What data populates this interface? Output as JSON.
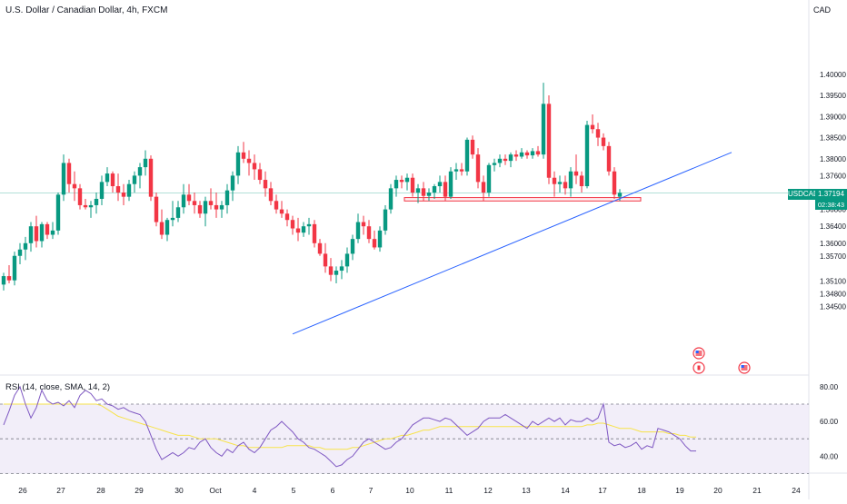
{
  "header": {
    "title": "U.S. Dollar / Canadian Dollar, 4h, FXCM",
    "currency": "CAD"
  },
  "price_badge": {
    "symbol": "USDCAD",
    "price": "1.37194",
    "countdown": "02:38:43"
  },
  "rsi_panel": {
    "title": "RSI (14, close, SMA, 14, 2)"
  },
  "colors": {
    "up": "#089981",
    "down": "#f23645",
    "trendline": "#2962ff",
    "rsi_line": "#7e57c2",
    "rsi_ma": "#f7e34a",
    "rsi_band": "#ede7f6"
  },
  "chart_data": [
    {
      "type": "candlestick",
      "timeframe": "4h",
      "y_axis_ticks": [
        "1.40000",
        "1.39500",
        "1.39000",
        "1.38500",
        "1.38000",
        "1.37600",
        "1.36800",
        "1.36400",
        "1.36000",
        "1.35700",
        "1.35100",
        "1.34800",
        "1.34500"
      ],
      "x_axis_ticks": [
        "26",
        "27",
        "28",
        "29",
        "30",
        "Oct",
        "4",
        "5",
        "6",
        "7",
        "10",
        "11",
        "12",
        "13",
        "14",
        "17",
        "18",
        "19",
        "20",
        "21",
        "24"
      ],
      "current_price": 1.37194,
      "trendline": {
        "from": [
          "Oct 4",
          1.3385
        ],
        "to": [
          "Oct 21",
          1.3815
        ]
      },
      "support_zone": [
        1.37,
        1.3708
      ],
      "event_markers": [
        "US",
        "CA",
        "US"
      ],
      "candles": [
        [
          1.3502,
          1.353,
          1.3488,
          1.3522
        ],
        [
          1.3522,
          1.3548,
          1.3505,
          1.3512
        ],
        [
          1.3512,
          1.358,
          1.35,
          1.357
        ],
        [
          1.357,
          1.36,
          1.355,
          1.3585
        ],
        [
          1.3585,
          1.3615,
          1.356,
          1.36
        ],
        [
          1.36,
          1.365,
          1.358,
          1.364
        ],
        [
          1.364,
          1.3665,
          1.359,
          1.3605
        ],
        [
          1.3605,
          1.365,
          1.359,
          1.3645
        ],
        [
          1.3645,
          1.365,
          1.361,
          1.362
        ],
        [
          1.362,
          1.365,
          1.361,
          1.363
        ],
        [
          1.363,
          1.372,
          1.362,
          1.3715
        ],
        [
          1.3715,
          1.381,
          1.37,
          1.379
        ],
        [
          1.379,
          1.38,
          1.372,
          1.374
        ],
        [
          1.374,
          1.377,
          1.37,
          1.373
        ],
        [
          1.373,
          1.374,
          1.368,
          1.369
        ],
        [
          1.369,
          1.3705,
          1.368,
          1.3685
        ],
        [
          1.3685,
          1.37,
          1.366,
          1.369
        ],
        [
          1.369,
          1.372,
          1.367,
          1.3705
        ],
        [
          1.3705,
          1.376,
          1.369,
          1.3745
        ],
        [
          1.3745,
          1.378,
          1.3735,
          1.3765
        ],
        [
          1.3765,
          1.377,
          1.372,
          1.3735
        ],
        [
          1.3735,
          1.3765,
          1.37,
          1.372
        ],
        [
          1.372,
          1.374,
          1.369,
          1.371
        ],
        [
          1.371,
          1.375,
          1.37,
          1.374
        ],
        [
          1.374,
          1.377,
          1.372,
          1.376
        ],
        [
          1.376,
          1.379,
          1.373,
          1.378
        ],
        [
          1.378,
          1.382,
          1.376,
          1.38
        ],
        [
          1.38,
          1.3808,
          1.37,
          1.371
        ],
        [
          1.371,
          1.372,
          1.364,
          1.365
        ],
        [
          1.365,
          1.368,
          1.361,
          1.362
        ],
        [
          1.362,
          1.366,
          1.3605,
          1.3655
        ],
        [
          1.3655,
          1.37,
          1.364,
          1.366
        ],
        [
          1.366,
          1.37,
          1.365,
          1.3685
        ],
        [
          1.3685,
          1.374,
          1.367,
          1.3715
        ],
        [
          1.3715,
          1.374,
          1.369,
          1.37
        ],
        [
          1.37,
          1.372,
          1.367,
          1.369
        ],
        [
          1.369,
          1.37,
          1.366,
          1.367
        ],
        [
          1.367,
          1.371,
          1.364,
          1.37
        ],
        [
          1.37,
          1.373,
          1.368,
          1.369
        ],
        [
          1.369,
          1.372,
          1.366,
          1.368
        ],
        [
          1.368,
          1.37,
          1.366,
          1.369
        ],
        [
          1.369,
          1.374,
          1.367,
          1.3725
        ],
        [
          1.3725,
          1.377,
          1.37,
          1.376
        ],
        [
          1.376,
          1.383,
          1.374,
          1.3815
        ],
        [
          1.3815,
          1.384,
          1.379,
          1.38
        ],
        [
          1.38,
          1.382,
          1.376,
          1.379
        ],
        [
          1.379,
          1.381,
          1.375,
          1.3775
        ],
        [
          1.3775,
          1.379,
          1.374,
          1.375
        ],
        [
          1.375,
          1.377,
          1.371,
          1.373
        ],
        [
          1.373,
          1.3745,
          1.369,
          1.37
        ],
        [
          1.37,
          1.3715,
          1.367,
          1.368
        ],
        [
          1.368,
          1.37,
          1.366,
          1.367
        ],
        [
          1.367,
          1.368,
          1.364,
          1.3655
        ],
        [
          1.3655,
          1.3665,
          1.362,
          1.3635
        ],
        [
          1.3635,
          1.366,
          1.3605,
          1.3625
        ],
        [
          1.3625,
          1.365,
          1.3615,
          1.364
        ],
        [
          1.364,
          1.366,
          1.362,
          1.3645
        ],
        [
          1.3645,
          1.3655,
          1.359,
          1.36
        ],
        [
          1.36,
          1.361,
          1.357,
          1.3575
        ],
        [
          1.3575,
          1.36,
          1.353,
          1.3545
        ],
        [
          1.3545,
          1.3565,
          1.351,
          1.3525
        ],
        [
          1.3525,
          1.3545,
          1.3505,
          1.3535
        ],
        [
          1.3535,
          1.356,
          1.3515,
          1.3545
        ],
        [
          1.3545,
          1.359,
          1.353,
          1.3575
        ],
        [
          1.3575,
          1.362,
          1.356,
          1.361
        ],
        [
          1.361,
          1.367,
          1.36,
          1.365
        ],
        [
          1.365,
          1.3665,
          1.362,
          1.364
        ],
        [
          1.364,
          1.3655,
          1.36,
          1.361
        ],
        [
          1.361,
          1.363,
          1.3585,
          1.359
        ],
        [
          1.359,
          1.364,
          1.358,
          1.363
        ],
        [
          1.363,
          1.369,
          1.362,
          1.368
        ],
        [
          1.368,
          1.374,
          1.367,
          1.373
        ],
        [
          1.373,
          1.376,
          1.371,
          1.375
        ],
        [
          1.375,
          1.376,
          1.373,
          1.3745
        ],
        [
          1.3745,
          1.3765,
          1.3725,
          1.3755
        ],
        [
          1.3755,
          1.3765,
          1.371,
          1.372
        ],
        [
          1.372,
          1.374,
          1.3695,
          1.373
        ],
        [
          1.373,
          1.3745,
          1.37,
          1.3712
        ],
        [
          1.3712,
          1.373,
          1.37,
          1.372
        ],
        [
          1.372,
          1.374,
          1.3705,
          1.3735
        ],
        [
          1.3735,
          1.376,
          1.372,
          1.3745
        ],
        [
          1.3745,
          1.376,
          1.37,
          1.371
        ],
        [
          1.371,
          1.378,
          1.3705,
          1.377
        ],
        [
          1.377,
          1.379,
          1.375,
          1.3775
        ],
        [
          1.3775,
          1.379,
          1.376,
          1.377
        ],
        [
          1.377,
          1.385,
          1.376,
          1.3845
        ],
        [
          1.3845,
          1.3855,
          1.38,
          1.381
        ],
        [
          1.381,
          1.3825,
          1.373,
          1.3745
        ],
        [
          1.3745,
          1.376,
          1.37,
          1.372
        ],
        [
          1.372,
          1.379,
          1.371,
          1.3785
        ],
        [
          1.3785,
          1.38,
          1.377,
          1.379
        ],
        [
          1.379,
          1.381,
          1.378,
          1.38
        ],
        [
          1.38,
          1.381,
          1.3785,
          1.3795
        ],
        [
          1.3795,
          1.3815,
          1.378,
          1.381
        ],
        [
          1.381,
          1.382,
          1.3795,
          1.3805
        ],
        [
          1.3805,
          1.3825,
          1.38,
          1.3815
        ],
        [
          1.3815,
          1.382,
          1.38,
          1.3808
        ],
        [
          1.3808,
          1.3825,
          1.38,
          1.3818
        ],
        [
          1.3818,
          1.383,
          1.3805,
          1.381
        ],
        [
          1.381,
          1.398,
          1.38,
          1.393
        ],
        [
          1.393,
          1.395,
          1.374,
          1.3755
        ],
        [
          1.3755,
          1.377,
          1.371,
          1.374
        ],
        [
          1.374,
          1.376,
          1.372,
          1.3745
        ],
        [
          1.3745,
          1.376,
          1.3715,
          1.373
        ],
        [
          1.373,
          1.378,
          1.371,
          1.377
        ],
        [
          1.377,
          1.381,
          1.374,
          1.376
        ],
        [
          1.376,
          1.377,
          1.372,
          1.3735
        ],
        [
          1.3735,
          1.389,
          1.373,
          1.388
        ],
        [
          1.388,
          1.3905,
          1.386,
          1.387
        ],
        [
          1.387,
          1.3885,
          1.383,
          1.385
        ],
        [
          1.385,
          1.386,
          1.382,
          1.383
        ],
        [
          1.383,
          1.384,
          1.376,
          1.377
        ],
        [
          1.377,
          1.378,
          1.3705,
          1.3715
        ],
        [
          1.371,
          1.3728,
          1.37,
          1.3719
        ]
      ]
    },
    {
      "type": "line",
      "title": "RSI (14, close, SMA, 14, 2)",
      "y_axis_ticks": [
        "80.00",
        "60.00",
        "40.00"
      ],
      "ylim": [
        20,
        90
      ],
      "bands": [
        30,
        50,
        70
      ],
      "series": [
        {
          "values": [
            58,
            66,
            75,
            80,
            70,
            62,
            68,
            78,
            72,
            70,
            71,
            69,
            72,
            68,
            75,
            78,
            76,
            72,
            73,
            70,
            69,
            67,
            68,
            66,
            65,
            64,
            60,
            52,
            44,
            38,
            40,
            42,
            40,
            42,
            45,
            44,
            48,
            50,
            45,
            42,
            40,
            44,
            42,
            46,
            48,
            44,
            42,
            45,
            50,
            55,
            57,
            60,
            57,
            54,
            50,
            48,
            45,
            44,
            42,
            40,
            37,
            34,
            35,
            38,
            40,
            44,
            48,
            50,
            48,
            46,
            44,
            45,
            48,
            50,
            54,
            58,
            60,
            62,
            62,
            61,
            60,
            62,
            61,
            58,
            55,
            52,
            54,
            56,
            60,
            62,
            62,
            62,
            64,
            62,
            60,
            58,
            56,
            60,
            58,
            60,
            62,
            60,
            62,
            58,
            61,
            60,
            60,
            62,
            60,
            62,
            70,
            48,
            46,
            47,
            45,
            46,
            48,
            44,
            46,
            45,
            56,
            55,
            54,
            52,
            50,
            46,
            43,
            43
          ]
        },
        {
          "values": [
            70,
            70,
            70,
            70,
            70,
            70,
            70,
            70,
            70,
            70,
            70,
            70,
            70,
            70,
            70,
            70,
            70,
            70,
            69,
            67,
            65,
            63,
            62,
            61,
            60,
            59,
            58,
            57,
            56,
            55,
            54,
            53,
            52,
            52,
            52,
            51,
            50,
            50,
            50,
            50,
            49,
            48,
            47,
            46,
            46,
            45,
            45,
            45,
            45,
            45,
            45,
            45,
            46,
            46,
            46,
            46,
            46,
            45,
            45,
            44,
            44,
            44,
            44,
            44,
            45,
            45,
            46,
            47,
            48,
            49,
            50,
            50,
            51,
            52,
            52,
            53,
            54,
            55,
            55,
            56,
            57,
            57,
            57,
            57,
            57,
            57,
            57,
            57,
            57,
            57,
            57,
            57,
            57,
            57,
            57,
            57,
            57,
            57,
            57,
            57,
            57,
            57,
            57,
            57,
            57,
            57,
            57,
            58,
            58,
            59,
            59,
            58,
            57,
            56,
            56,
            56,
            55,
            54,
            54,
            54,
            54,
            54,
            53,
            53,
            52,
            52,
            51,
            51
          ]
        }
      ]
    }
  ]
}
